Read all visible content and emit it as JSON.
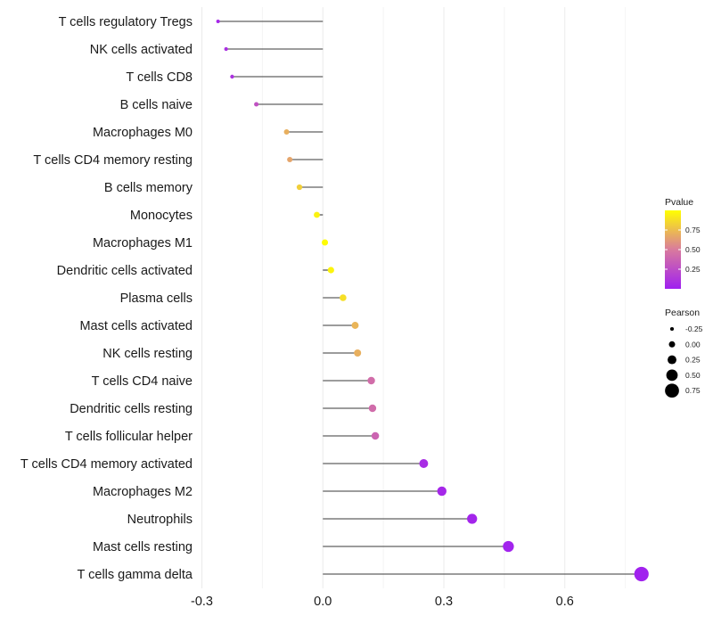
{
  "chart_data": {
    "type": "lollipop",
    "title": "",
    "xlabel": "",
    "ylabel": "",
    "xlim": [
      -0.31,
      0.795
    ],
    "x_ticks": [
      -0.3,
      0.0,
      0.3,
      0.6
    ],
    "x_tick_labels": [
      "-0.3",
      "0.0",
      "0.3",
      "0.6"
    ],
    "grid": true,
    "baseline": 0.0,
    "categories": [
      "T cells regulatory  Tregs",
      "NK cells activated",
      "T cells CD8",
      "B cells naive",
      "Macrophages M0",
      "T cells CD4 memory resting",
      "B cells memory",
      "Monocytes",
      "Macrophages M1",
      "Dendritic cells activated",
      "Plasma cells",
      "Mast cells activated",
      "NK cells resting",
      "T cells CD4 naive",
      "Dendritic cells resting",
      "T cells follicular helper",
      "T cells CD4 memory activated",
      "Macrophages M2",
      "Neutrophils",
      "Mast cells resting",
      "T cells gamma delta"
    ],
    "pearson": [
      -0.26,
      -0.24,
      -0.225,
      -0.165,
      -0.09,
      -0.082,
      -0.058,
      -0.015,
      0.005,
      0.02,
      0.05,
      0.08,
      0.086,
      0.12,
      0.123,
      0.13,
      0.25,
      0.295,
      0.37,
      0.46,
      0.79
    ],
    "pvalue": [
      0.04,
      0.09,
      0.1,
      0.28,
      0.7,
      0.66,
      0.82,
      0.95,
      0.99,
      0.96,
      0.88,
      0.72,
      0.7,
      0.43,
      0.42,
      0.38,
      0.07,
      0.04,
      0.03,
      0.02,
      0.01
    ],
    "legends": {
      "color": {
        "title": "Pvalue",
        "ticks": [
          0.25,
          0.5,
          0.75
        ],
        "tick_labels": [
          "0.25",
          "0.50",
          "0.75"
        ],
        "range": [
          0.0,
          1.0
        ],
        "position": "right",
        "colors": [
          "#a020f0",
          "#d97a9d",
          "#ffff00"
        ]
      },
      "size": {
        "title": "Pearson",
        "values": [
          -0.25,
          0.0,
          0.25,
          0.5,
          0.75
        ],
        "labels": [
          "-0.25",
          "0.00",
          "0.25",
          "0.50",
          "0.75"
        ],
        "position": "right"
      }
    }
  }
}
